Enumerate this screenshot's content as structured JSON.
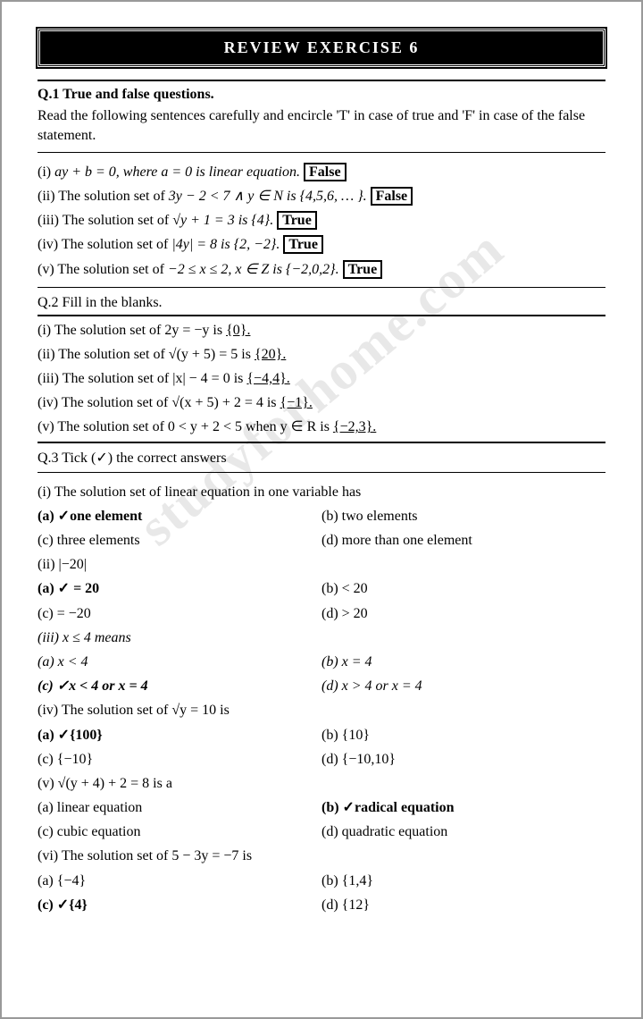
{
  "watermark": "studyforhome.com",
  "title": "REVIEW EXERCISE 6",
  "q1": {
    "head": "Q.1 True and false questions.",
    "intro": "Read the following sentences carefully and encircle 'T' in case of true and 'F' in case of the false statement.",
    "i": {
      "pre": "(i) ",
      "body": "ay + b = 0, where a = 0 is linear equation. ",
      "ans": "False"
    },
    "ii": {
      "pre": "(ii) The solution set of ",
      "body": "3y − 2 < 7 ∧ y ∈ N is {4,5,6, … }. ",
      "ans": "False"
    },
    "iii": {
      "pre": "(iii) The solution set of ",
      "body": "√y + 1 = 3 is {4}. ",
      "ans": "True"
    },
    "iv": {
      "pre": "(iv) The solution set of ",
      "body": "|4y| = 8 is {2, −2}. ",
      "ans": "True"
    },
    "v": {
      "pre": "(v) The solution set of ",
      "body": "−2 ≤ x ≤ 2, x ∈ Z is {−2,0,2}. ",
      "ans": "True"
    }
  },
  "q2": {
    "head": "Q.2 Fill in the blanks.",
    "i": "(i) The solution set of 2y = −y is ",
    "i_ans": "{0}.",
    "ii": "(ii) The solution set of √(y + 5) = 5 is ",
    "ii_ans": "{20}.",
    "iii": "(iii) The solution set of |x| − 4 = 0 is ",
    "iii_ans": "{−4,4}.",
    "iv": "(iv) The solution set of √(x + 5) + 2 = 4 is ",
    "iv_ans": "{−1}.",
    "v": "(v) The solution set of 0 < y + 2 < 5 when y ∈ R is ",
    "v_ans": "{−2,3}."
  },
  "q3": {
    "head": "Q.3 Tick (✓) the correct answers",
    "i": "(i) The solution set of linear equation in one variable has",
    "i_a": "(a) ✓one element",
    "i_b": "(b) two elements",
    "i_c": "(c) three elements",
    "i_d": "(d) more than one element",
    "ii": "(ii) |−20|",
    "ii_a": "(a) ✓ = 20",
    "ii_b": "(b) < 20",
    "ii_c": "(c) = −20",
    "ii_d": "(d) > 20",
    "iii": "(iii) x ≤ 4 means",
    "iii_a": "(a) x < 4",
    "iii_b": "(b) x = 4",
    "iii_c": "(c) ✓x < 4 or x = 4",
    "iii_d": "(d) x > 4 or x = 4",
    "iv": "(iv) The solution set of √y = 10 is",
    "iv_a": "(a) ✓{100}",
    "iv_b": "(b) {10}",
    "iv_c": "(c) {−10}",
    "iv_d": "(d) {−10,10}",
    "v": "(v) √(y + 4) + 2 = 8 is a",
    "v_a": "(a) linear equation",
    "v_b": "(b) ✓radical equation",
    "v_c": "(c) cubic equation",
    "v_d": "(d) quadratic equation",
    "vi": "(vi) The solution set of 5 − 3y = −7 is",
    "vi_a": "(a) {−4}",
    "vi_b": "(b) {1,4}",
    "vi_c": "(c) ✓{4}",
    "vi_d": "(d) {12}"
  }
}
